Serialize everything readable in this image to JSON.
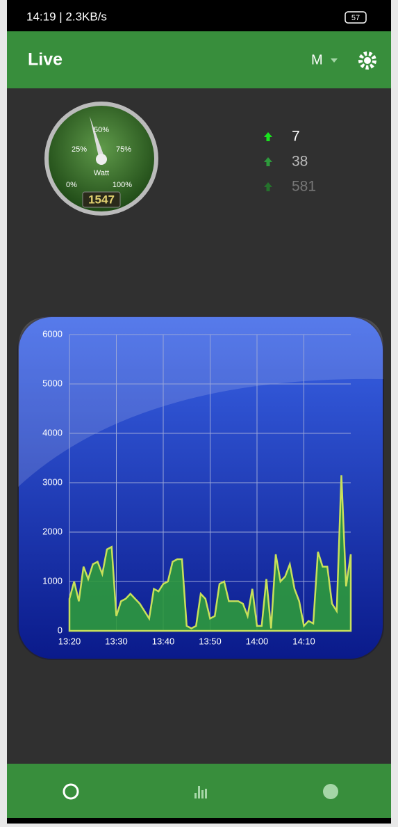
{
  "status_bar": {
    "left": "14:19 | 2.3KB/s",
    "battery": "57"
  },
  "app_bar": {
    "title": "Live",
    "menu": "M"
  },
  "gauge": {
    "labels": [
      "0%",
      "25%",
      "50%",
      "75%",
      "100%"
    ],
    "unit": "Watt",
    "reading": "1547"
  },
  "stats": [
    "7",
    "38",
    "581"
  ],
  "chart_data": {
    "type": "area",
    "x": [
      800,
      801,
      802,
      803,
      804,
      805,
      806,
      807,
      808,
      809,
      810,
      811,
      812,
      813,
      814,
      815,
      816,
      817,
      818,
      819,
      820,
      821,
      822,
      823,
      824,
      825,
      826,
      827,
      828,
      829,
      830,
      831,
      832,
      833,
      834,
      835,
      836,
      837,
      838,
      839,
      840,
      841,
      842,
      843,
      844,
      845,
      846,
      847,
      848,
      849,
      850,
      851,
      852,
      853,
      854,
      855,
      856,
      857,
      858,
      859,
      860
    ],
    "series": [
      {
        "color": "#2e9a3c",
        "values": [
          650,
          1000,
          600,
          1300,
          1050,
          1350,
          1400,
          1150,
          1650,
          1700,
          300,
          600,
          650,
          750,
          650,
          550,
          400,
          250,
          850,
          800,
          950,
          1000,
          1400,
          1450,
          1450,
          100,
          50,
          100,
          750,
          650,
          250,
          300,
          950,
          1000,
          600,
          600,
          600,
          550,
          300,
          850,
          100,
          100,
          1050,
          50,
          1550,
          1000,
          1100,
          1350,
          850,
          600,
          100,
          200,
          150,
          1600,
          1300,
          1300,
          550,
          400,
          3150,
          900,
          1550
        ]
      }
    ],
    "xlim": [
      800,
      860
    ],
    "xticks": [
      {
        "value": 800,
        "label": "13:20"
      },
      {
        "value": 810,
        "label": "13:30"
      },
      {
        "value": 820,
        "label": "13:40"
      },
      {
        "value": 830,
        "label": "13:50"
      },
      {
        "value": 840,
        "label": "14:00"
      },
      {
        "value": 850,
        "label": "14:10"
      }
    ],
    "ylim": [
      0,
      6000
    ],
    "yticks": [
      0,
      1000,
      2000,
      3000,
      4000,
      5000,
      6000
    ],
    "grid": true
  }
}
